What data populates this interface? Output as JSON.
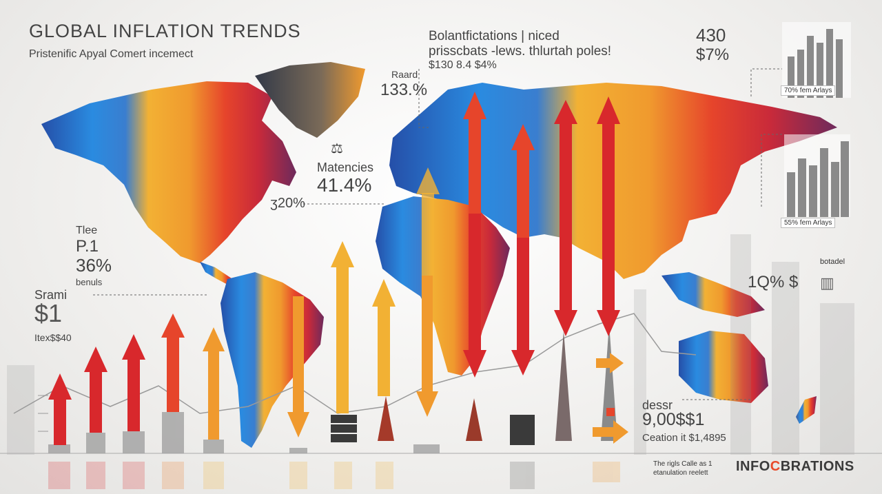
{
  "header": {
    "title": "GLOBAL INFLATION TRENDS",
    "subtitle": "Pristenific Apyal Comert incemect"
  },
  "top_callout": {
    "line1": "Bolantfictations | niced",
    "line2": "prisscbats -lews. thlurtah poles!",
    "line3": "$130  8.4  $4%"
  },
  "callouts": {
    "raard_label": "Raard",
    "raard_value": "133.%",
    "matencies_label": "Matencies",
    "matencies_value": "41.4%",
    "small_value": "ʒ20%",
    "tlee_label": "Tlee",
    "tlee_p": "P.1",
    "tlee_value": "36%",
    "tlee_sub": "benuls",
    "srami_label": "Srami",
    "srami_value": "$1",
    "srami_sub": "Itex$$40",
    "right_top_value": "430",
    "right_top_sub": "$7%",
    "botadel_label": "botadel",
    "botadel_value": "1Q% $",
    "dessr_label": "dessr",
    "dessr_value": "9,00$$1",
    "dessr_sub": "Ceation it $1,4895"
  },
  "insets": [
    {
      "caption": "70% fem Arlays"
    },
    {
      "caption": "55% fem Arlays"
    }
  ],
  "footer": {
    "note_line1": "The rigls Calle as 1",
    "note_line2": "etanulation reelett",
    "brand_left": "INFO",
    "brand_accent": "C",
    "brand_right": "BRATIONS"
  },
  "colors": {
    "blue": "#2f6fc8",
    "yellow": "#f2b134",
    "orange": "#ee7a2a",
    "red": "#d8282c",
    "purple": "#6d2a5c"
  }
}
